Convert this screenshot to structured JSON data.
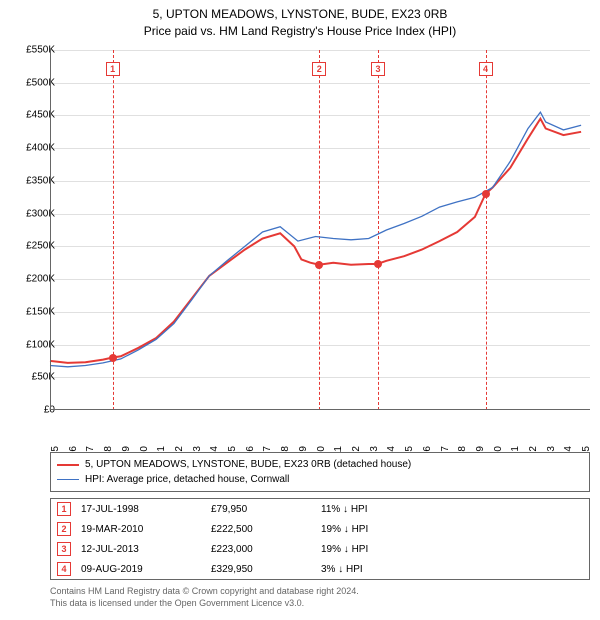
{
  "title": {
    "line1": "5, UPTON MEADOWS, LYNSTONE, BUDE, EX23 0RB",
    "line2": "Price paid vs. HM Land Registry's House Price Index (HPI)"
  },
  "chart": {
    "type": "line",
    "xlim": [
      1995,
      2025.5
    ],
    "ylim": [
      0,
      550
    ],
    "ytick_step": 50,
    "ytick_prefix": "£",
    "ytick_suffix": "K",
    "xtick_step": 1,
    "background_color": "#ffffff",
    "grid_color": "#e0e0e0",
    "axis_color": "#666666",
    "series": [
      {
        "name": "property",
        "label": "5, UPTON MEADOWS, LYNSTONE, BUDE, EX23 0RB (detached house)",
        "color": "#e53935",
        "width": 2,
        "points": [
          [
            1995,
            75
          ],
          [
            1996,
            72
          ],
          [
            1997,
            73
          ],
          [
            1998,
            77
          ],
          [
            1998.5,
            80
          ],
          [
            1999,
            82
          ],
          [
            2000,
            95
          ],
          [
            2001,
            110
          ],
          [
            2002,
            135
          ],
          [
            2003,
            170
          ],
          [
            2004,
            205
          ],
          [
            2005,
            225
          ],
          [
            2006,
            245
          ],
          [
            2007,
            262
          ],
          [
            2008,
            270
          ],
          [
            2008.8,
            250
          ],
          [
            2009.2,
            230
          ],
          [
            2009.7,
            225
          ],
          [
            2010.2,
            222
          ],
          [
            2011,
            225
          ],
          [
            2012,
            222
          ],
          [
            2013,
            223
          ],
          [
            2013.5,
            223
          ],
          [
            2014,
            228
          ],
          [
            2015,
            235
          ],
          [
            2016,
            245
          ],
          [
            2017,
            258
          ],
          [
            2018,
            272
          ],
          [
            2019,
            295
          ],
          [
            2019.6,
            330
          ],
          [
            2020,
            340
          ],
          [
            2021,
            370
          ],
          [
            2022,
            415
          ],
          [
            2022.7,
            445
          ],
          [
            2023,
            430
          ],
          [
            2024,
            420
          ],
          [
            2025,
            425
          ]
        ]
      },
      {
        "name": "hpi",
        "label": "HPI: Average price, detached house, Cornwall",
        "color": "#3f72c4",
        "width": 1.3,
        "points": [
          [
            1995,
            68
          ],
          [
            1996,
            66
          ],
          [
            1997,
            68
          ],
          [
            1998,
            72
          ],
          [
            1999,
            78
          ],
          [
            2000,
            92
          ],
          [
            2001,
            108
          ],
          [
            2002,
            132
          ],
          [
            2003,
            168
          ],
          [
            2004,
            205
          ],
          [
            2005,
            228
          ],
          [
            2006,
            250
          ],
          [
            2007,
            272
          ],
          [
            2008,
            280
          ],
          [
            2009,
            258
          ],
          [
            2010,
            265
          ],
          [
            2011,
            262
          ],
          [
            2012,
            260
          ],
          [
            2013,
            262
          ],
          [
            2014,
            275
          ],
          [
            2015,
            285
          ],
          [
            2016,
            296
          ],
          [
            2017,
            310
          ],
          [
            2018,
            318
          ],
          [
            2019,
            325
          ],
          [
            2020,
            340
          ],
          [
            2021,
            380
          ],
          [
            2022,
            430
          ],
          [
            2022.7,
            455
          ],
          [
            2023,
            440
          ],
          [
            2024,
            428
          ],
          [
            2025,
            435
          ]
        ]
      }
    ],
    "sale_markers": [
      {
        "n": 1,
        "year": 1998.54,
        "value": 80
      },
      {
        "n": 2,
        "year": 2010.21,
        "value": 222
      },
      {
        "n": 3,
        "year": 2013.53,
        "value": 223
      },
      {
        "n": 4,
        "year": 2019.6,
        "value": 330
      }
    ]
  },
  "transactions": [
    {
      "n": "1",
      "date": "17-JUL-1998",
      "price": "£79,950",
      "diff": "11% ↓ HPI"
    },
    {
      "n": "2",
      "date": "19-MAR-2010",
      "price": "£222,500",
      "diff": "19% ↓ HPI"
    },
    {
      "n": "3",
      "date": "12-JUL-2013",
      "price": "£223,000",
      "diff": "19% ↓ HPI"
    },
    {
      "n": "4",
      "date": "09-AUG-2019",
      "price": "£329,950",
      "diff": "3% ↓ HPI"
    }
  ],
  "footer": {
    "line1": "Contains HM Land Registry data © Crown copyright and database right 2024.",
    "line2": "This data is licensed under the Open Government Licence v3.0."
  }
}
